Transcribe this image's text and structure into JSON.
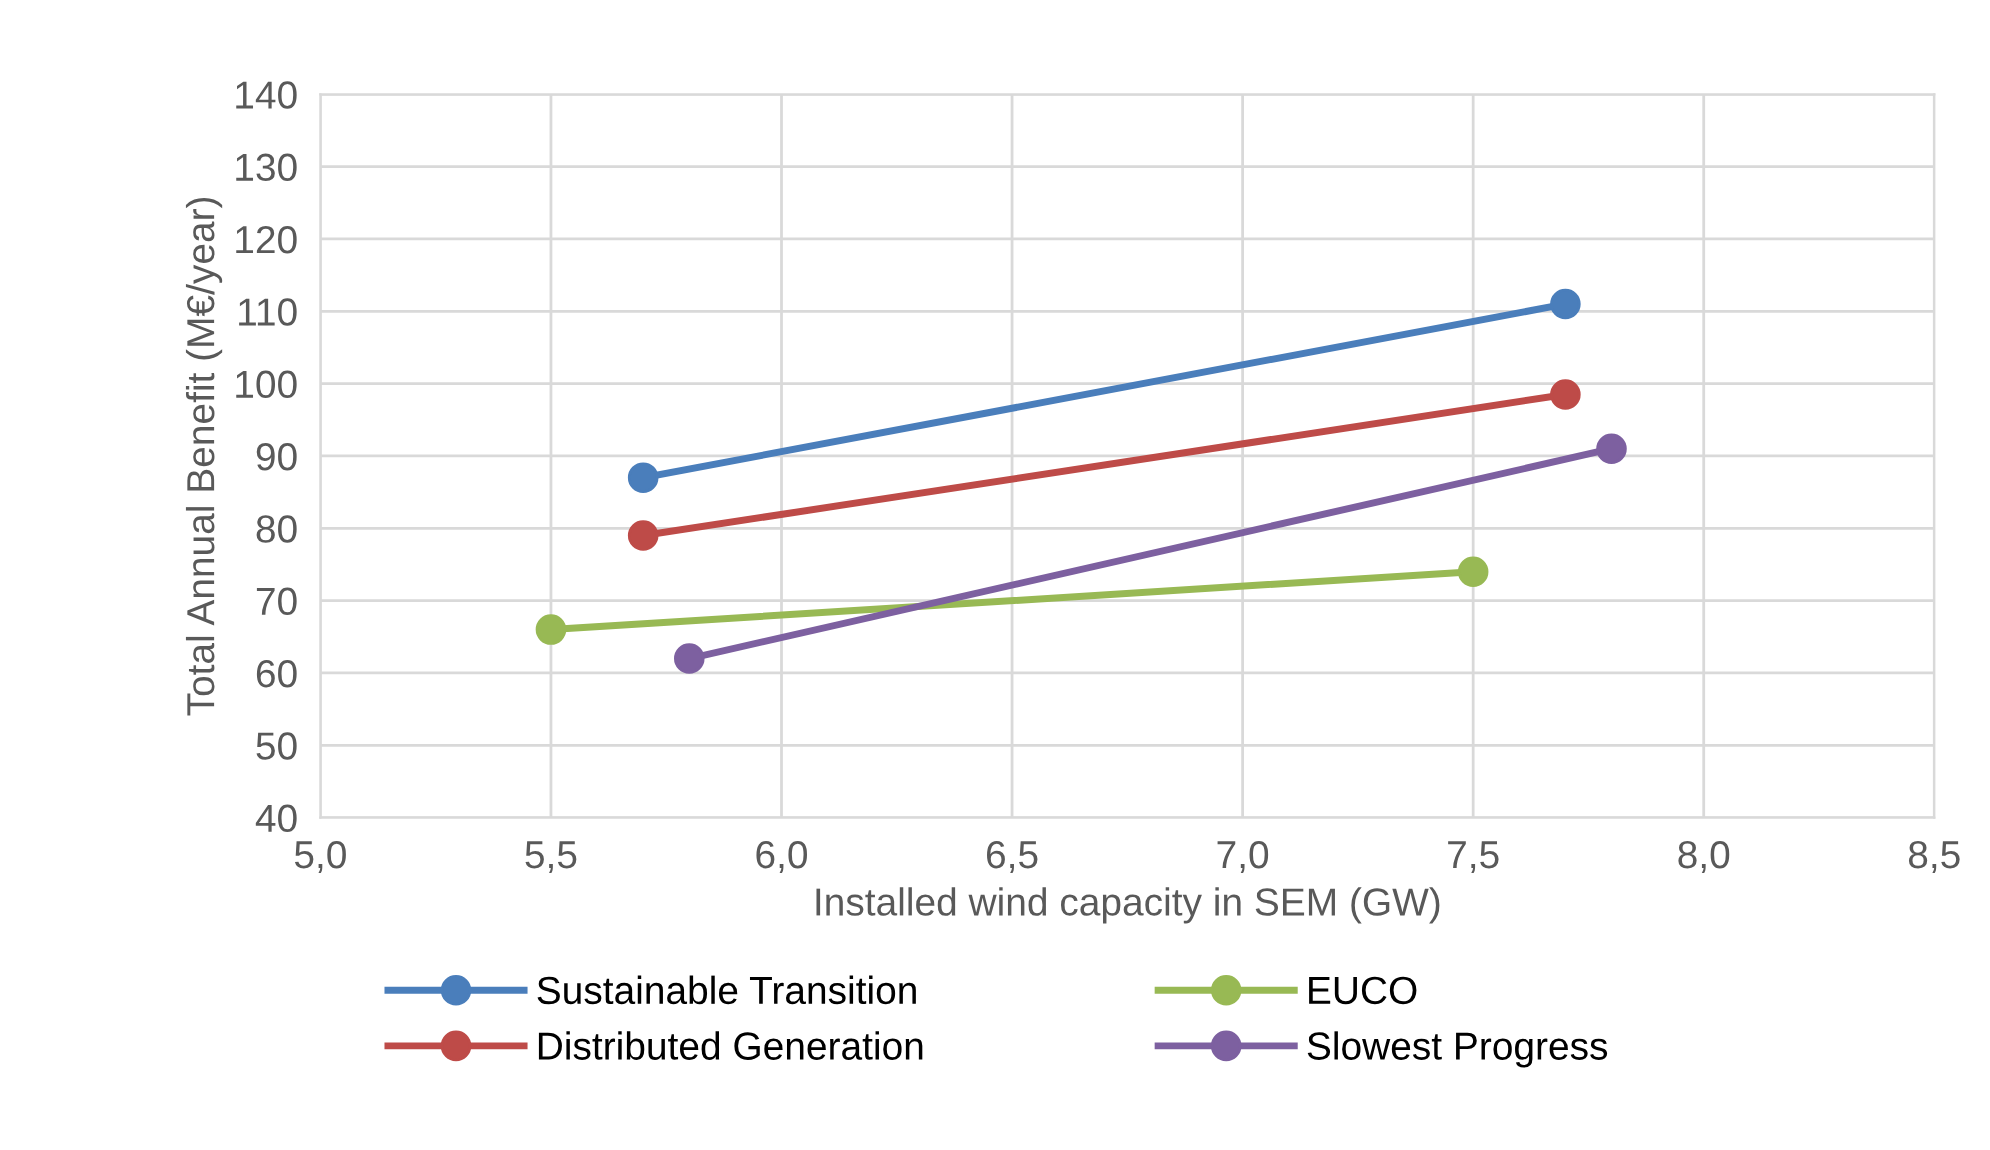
{
  "chart_data": {
    "type": "line",
    "xlabel": "Installed wind capacity in SEM (GW)",
    "ylabel": "Total Annual Benefit (M€/year)",
    "xlim": [
      5.0,
      8.5
    ],
    "xticks": [
      {
        "value": 5.0,
        "label": "5,0"
      },
      {
        "value": 5.5,
        "label": "5,5"
      },
      {
        "value": 6.0,
        "label": "6,0"
      },
      {
        "value": 6.5,
        "label": "6,5"
      },
      {
        "value": 7.0,
        "label": "7,0"
      },
      {
        "value": 7.5,
        "label": "7,5"
      },
      {
        "value": 8.0,
        "label": "8,0"
      },
      {
        "value": 8.5,
        "label": "8,5"
      }
    ],
    "ylim": [
      40,
      140
    ],
    "yticks": [
      40,
      50,
      60,
      70,
      80,
      90,
      100,
      110,
      120,
      130,
      140
    ],
    "grid": true,
    "legend": "bottom",
    "marker": "circle",
    "line_style": "solid",
    "series": [
      {
        "name": "Sustainable Transition",
        "color": "#4a7ebb",
        "x": [
          5.7,
          7.7
        ],
        "values": [
          87,
          111
        ]
      },
      {
        "name": "Distributed Generation",
        "color": "#be4b48",
        "x": [
          5.7,
          7.7
        ],
        "values": [
          79,
          98.5
        ]
      },
      {
        "name": "EUCO",
        "color": "#98b954",
        "x": [
          5.5,
          7.5
        ],
        "values": [
          66,
          74
        ]
      },
      {
        "name": "Slowest Progress",
        "color": "#7d60a0",
        "x": [
          5.8,
          7.8
        ],
        "values": [
          62,
          91
        ]
      }
    ]
  }
}
